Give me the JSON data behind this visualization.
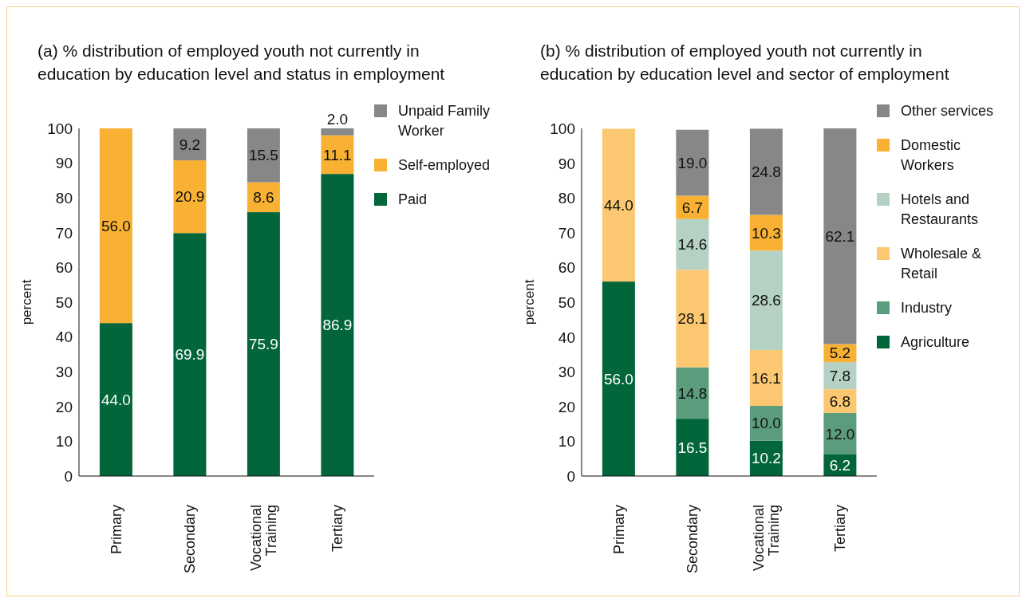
{
  "chart_data": [
    {
      "type": "bar",
      "title": "(a) % distribution of employed youth not currently in education by education level and status in employment",
      "ylabel": "percent",
      "categories": [
        "Primary",
        "Secondary",
        "Vocational Training",
        "Tertiary"
      ],
      "stacked": true,
      "ylim": [
        0,
        100
      ],
      "yticks": [
        0,
        10,
        20,
        30,
        40,
        50,
        60,
        70,
        80,
        90,
        100
      ],
      "grid": false,
      "legend": "top right",
      "series": [
        {
          "name": "Paid",
          "color": "#03663a",
          "values": [
            44.0,
            69.9,
            75.9,
            86.9
          ],
          "value_labels": [
            "44.0",
            "69.9",
            "75.9",
            "86.9"
          ]
        },
        {
          "name": "Self-employed",
          "color": "#f8b133",
          "values": [
            56.0,
            20.9,
            8.6,
            11.1
          ],
          "value_labels": [
            "56.0",
            "20.9",
            "8.6",
            "11.1"
          ]
        },
        {
          "name": "Unpaid Family Worker",
          "color": "#878787",
          "values": [
            0,
            9.2,
            15.5,
            2.0
          ],
          "value_labels": [
            null,
            "9.2",
            "15.5",
            "2.0"
          ]
        }
      ]
    },
    {
      "type": "bar",
      "title": "(b) % distribution of employed youth not currently in education by education level and sector of employment",
      "ylabel": "percent",
      "categories": [
        "Primary",
        "Secondary",
        "Vocational Training",
        "Tertiary"
      ],
      "stacked": true,
      "ylim": [
        0,
        100
      ],
      "yticks": [
        0,
        10,
        20,
        30,
        40,
        50,
        60,
        70,
        80,
        90,
        100
      ],
      "grid": false,
      "legend": "top right",
      "series": [
        {
          "name": "Agriculture",
          "color": "#03663a",
          "values": [
            56.0,
            16.5,
            10.2,
            6.2
          ],
          "value_labels": [
            "56.0",
            "16.5",
            "10.2",
            "6.2"
          ]
        },
        {
          "name": "Industry",
          "color": "#5a9c7b",
          "values": [
            0,
            14.8,
            10.0,
            12.0
          ],
          "value_labels": [
            null,
            "14.8",
            "10.0",
            "12.0"
          ]
        },
        {
          "name": "Wholesale & Retail",
          "color": "#fbc871",
          "values": [
            44.0,
            28.1,
            16.1,
            6.8
          ],
          "value_labels": [
            "44.0",
            "28.1",
            "16.1",
            "6.8"
          ]
        },
        {
          "name": "Hotels and Restaurants",
          "color": "#b5d1c3",
          "values": [
            0,
            14.6,
            28.6,
            7.8
          ],
          "value_labels": [
            null,
            "14.6",
            "28.6",
            "7.8"
          ]
        },
        {
          "name": "Domestic Workers",
          "color": "#f8b133",
          "values": [
            0,
            6.7,
            10.3,
            5.2
          ],
          "value_labels": [
            null,
            "6.7",
            "10.3",
            "5.2"
          ]
        },
        {
          "name": "Other services",
          "color": "#878787",
          "values": [
            0,
            19.0,
            24.8,
            62.1
          ],
          "value_labels": [
            null,
            "19.0",
            "24.8",
            "62.1"
          ]
        }
      ]
    }
  ]
}
